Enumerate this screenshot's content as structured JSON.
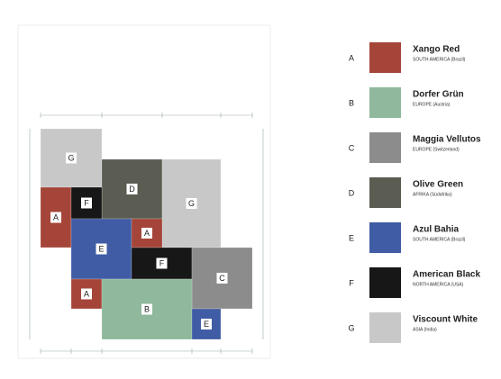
{
  "legend": [
    {
      "letter": "A",
      "name": "Xango Red",
      "origin": "SOUTH AMERICA (Brazil)",
      "color": "#a5453a"
    },
    {
      "letter": "B",
      "name": "Dorfer Grün",
      "origin": "EUROPE (Austria)",
      "color": "#8fb89c"
    },
    {
      "letter": "C",
      "name": "Maggia Vellutos",
      "origin": "EUROPE (Switzerland)",
      "color": "#8c8c8c"
    },
    {
      "letter": "D",
      "name": "Olive Green",
      "origin": "AFRIKA (Südafrika)",
      "color": "#5b5c52"
    },
    {
      "letter": "E",
      "name": "Azul Bahia",
      "origin": "SOUTH AMERICA (Brazil)",
      "color": "#3f5ca4"
    },
    {
      "letter": "F",
      "name": "American Black",
      "origin": "NORTH AMERICA (USA)",
      "color": "#171717"
    },
    {
      "letter": "G",
      "name": "Viscount White",
      "origin": "ASIA (India)",
      "color": "#c8c8c8"
    }
  ],
  "tiles": [
    {
      "label": "G"
    },
    {
      "label": "D"
    },
    {
      "label": "G"
    },
    {
      "label": "A"
    },
    {
      "label": "F"
    },
    {
      "label": "E"
    },
    {
      "label": "A"
    },
    {
      "label": "F"
    },
    {
      "label": "C"
    },
    {
      "label": "A"
    },
    {
      "label": "B"
    },
    {
      "label": "E"
    }
  ]
}
